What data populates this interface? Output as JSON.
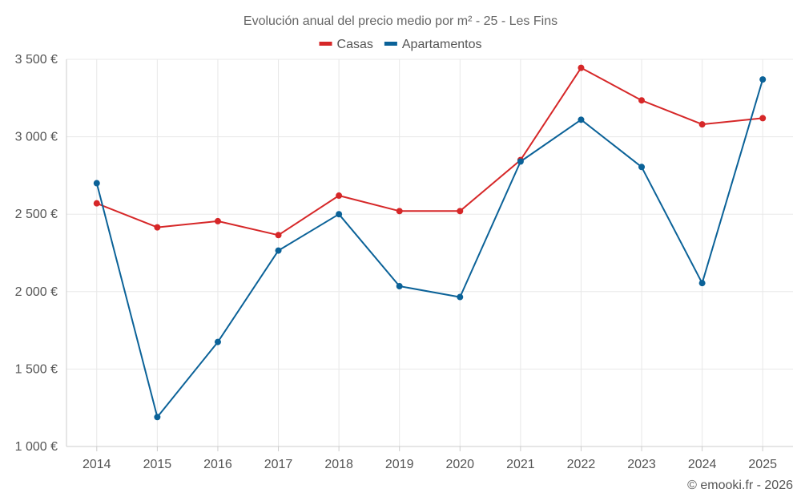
{
  "chart_data": {
    "type": "line",
    "title": "Evolución anual del precio medio por m² - 25 - Les Fins",
    "categories": [
      "2014",
      "2015",
      "2016",
      "2017",
      "2018",
      "2019",
      "2020",
      "2021",
      "2022",
      "2023",
      "2024",
      "2025"
    ],
    "series": [
      {
        "name": "Casas",
        "color": "#d62728",
        "values": [
          2570,
          2415,
          2455,
          2365,
          2620,
          2520,
          2520,
          2850,
          3445,
          3235,
          3080,
          3120
        ]
      },
      {
        "name": "Apartamentos",
        "color": "#0b6298",
        "values": [
          2700,
          1190,
          1675,
          2265,
          2500,
          2035,
          1965,
          2840,
          3110,
          2805,
          2055,
          3370
        ]
      }
    ],
    "ylim": [
      1000,
      3500
    ],
    "yticks": [
      1000,
      1500,
      2000,
      2500,
      3000,
      3500
    ],
    "ytick_labels": [
      "1 000 €",
      "1 500 €",
      "2 000 €",
      "2 500 €",
      "3 000 €",
      "3 500 €"
    ],
    "xlabel": "",
    "ylabel": "",
    "legend": "top-center",
    "grid": true
  },
  "credit": "© emooki.fr - 2026"
}
